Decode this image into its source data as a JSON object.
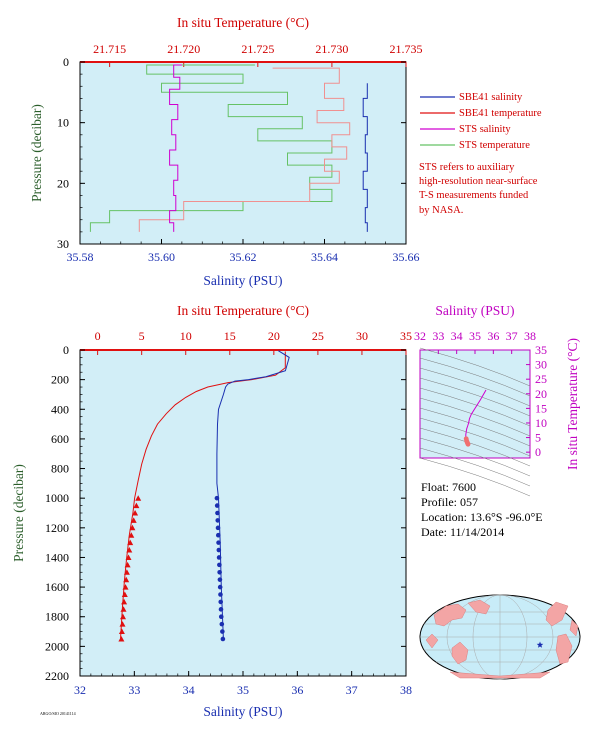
{
  "colors": {
    "panel_bg": "#d2eef7",
    "sbe41_salinity": "#1a2fb0",
    "sbe41_temperature": "#e01010",
    "sts_salinity": "#d000d0",
    "sts_temperature": "#66c266",
    "red_text": "#d00000",
    "blue_text": "#1a2fb0",
    "magenta_text": "#c000c0",
    "green_text": "#2c5f2c"
  },
  "chart_data": [
    {
      "type": "line",
      "top_axis_label": "In situ Temperature (°C)",
      "top_ticks": [
        "21.715",
        "21.720",
        "21.725",
        "21.730",
        "21.735"
      ],
      "top_lim": [
        21.713,
        21.735
      ],
      "xlabel": "Salinity (PSU)",
      "x_ticks": [
        "35.58",
        "35.60",
        "35.62",
        "35.64",
        "35.66"
      ],
      "xlim": [
        35.58,
        35.66
      ],
      "ylabel": "Pressure (decibar)",
      "y_ticks": [
        "0",
        "10",
        "20",
        "30"
      ],
      "ylim": [
        0,
        30
      ],
      "y_inverted": true,
      "legend_position": "right",
      "legend": [
        "SBE41 salinity",
        "SBE41 temperature",
        "STS salinity",
        "STS temperature"
      ],
      "series": [
        {
          "name": "SBE41 salinity",
          "x": [
            35.6505,
            35.6505,
            35.6495,
            35.6505,
            35.65,
            35.6505,
            35.6495,
            35.6505,
            35.65,
            35.6505
          ],
          "y": [
            3.5,
            6,
            9,
            12,
            15,
            18,
            21,
            24,
            26.5,
            28
          ]
        },
        {
          "name": "SBE41 temperature",
          "x": [
            21.726,
            21.7305,
            21.7295,
            21.7308,
            21.729,
            21.7312,
            21.73,
            21.731,
            21.7295,
            21.7305,
            21.7285,
            21.72,
            21.717
          ],
          "y": [
            1,
            3.5,
            6,
            8,
            10,
            12,
            14,
            16,
            18,
            20,
            23,
            26,
            28
          ]
        },
        {
          "name": "STS salinity",
          "x": [
            35.605,
            35.603,
            35.6045,
            35.602,
            35.604,
            35.6025,
            35.6035,
            35.602,
            35.604,
            35.603,
            35.6035,
            35.602,
            35.603
          ],
          "y": [
            0.5,
            2.5,
            4.5,
            7,
            9.5,
            12,
            14.5,
            17,
            19.5,
            22,
            24.5,
            26.5,
            28
          ]
        },
        {
          "name": "STS temperature",
          "x": [
            21.7248,
            21.7175,
            21.724,
            21.7185,
            21.727,
            21.723,
            21.728,
            21.725,
            21.73,
            21.727,
            21.73,
            21.7285,
            21.73,
            21.724,
            21.715,
            21.7137
          ],
          "y": [
            0.5,
            2,
            3.5,
            5,
            7,
            9,
            11,
            13,
            15,
            17,
            19,
            21,
            23,
            24.5,
            26.5,
            28
          ]
        }
      ]
    },
    {
      "type": "line",
      "top_axis_label": "In situ Temperature (°C)",
      "top_ticks": [
        "0",
        "5",
        "10",
        "15",
        "20",
        "25",
        "30",
        "35"
      ],
      "top_lim": [
        -2,
        35
      ],
      "xlabel": "Salinity (PSU)",
      "x_ticks": [
        "32",
        "33",
        "34",
        "35",
        "36",
        "37",
        "38"
      ],
      "xlim": [
        32,
        38
      ],
      "ylabel": "Pressure (decibar)",
      "y_ticks": [
        "0",
        "200",
        "400",
        "600",
        "800",
        "1000",
        "1200",
        "1400",
        "1600",
        "1800",
        "2000",
        "2200"
      ],
      "ylim": [
        0,
        2200
      ],
      "y_inverted": true,
      "series": [
        {
          "name": "Temperature",
          "x": [
            21.3,
            21.3,
            20.2,
            17.5,
            14.8,
            12.5,
            11.2,
            10.0,
            8.8,
            7.8,
            6.8,
            6.1,
            5.5,
            5.0,
            4.6,
            4.2,
            4.0,
            3.6,
            3.3,
            3.05,
            2.8,
            2.6
          ],
          "y": [
            10,
            120,
            170,
            200,
            220,
            250,
            280,
            320,
            370,
            430,
            500,
            580,
            670,
            770,
            880,
            1000,
            1100,
            1250,
            1400,
            1550,
            1750,
            1950
          ]
        },
        {
          "name": "Salinity",
          "x": [
            35.65,
            35.85,
            35.78,
            35.42,
            35.1,
            34.85,
            34.72,
            34.68,
            34.64,
            34.55,
            34.53,
            34.52,
            34.52,
            34.55,
            34.58,
            34.6,
            34.64
          ],
          "y": [
            5,
            50,
            140,
            180,
            200,
            210,
            230,
            250,
            300,
            400,
            500,
            700,
            900,
            1000,
            1300,
            1600,
            1950
          ]
        }
      ],
      "markers": {
        "temperature_x": [
          4.6,
          4.4,
          4.25,
          4.1,
          3.95,
          3.82,
          3.7,
          3.6,
          3.5,
          3.4,
          3.32,
          3.24,
          3.16,
          3.08,
          3.0,
          2.94,
          2.88,
          2.82,
          2.76,
          2.7
        ],
        "temperature_y": [
          1000,
          1050,
          1100,
          1150,
          1200,
          1250,
          1300,
          1350,
          1400,
          1450,
          1500,
          1550,
          1600,
          1650,
          1700,
          1750,
          1800,
          1850,
          1900,
          1950
        ],
        "salinity_x": [
          34.52,
          34.525,
          34.53,
          34.535,
          34.54,
          34.545,
          34.55,
          34.555,
          34.56,
          34.565,
          34.57,
          34.575,
          34.58,
          34.585,
          34.59,
          34.595,
          34.6,
          34.61,
          34.62,
          34.63
        ],
        "salinity_y": [
          1000,
          1050,
          1100,
          1150,
          1200,
          1250,
          1300,
          1350,
          1400,
          1450,
          1500,
          1550,
          1600,
          1650,
          1700,
          1750,
          1800,
          1850,
          1900,
          1950
        ]
      }
    },
    {
      "type": "scatter",
      "top_axis_label": "Salinity (PSU)",
      "x_ticks": [
        "32",
        "33",
        "34",
        "35",
        "36",
        "37",
        "38"
      ],
      "xlim": [
        32,
        38
      ],
      "right_axis_label": "In situ Temperature (°C)",
      "y_ticks": [
        "0",
        "5",
        "10",
        "15",
        "20",
        "25",
        "30",
        "35"
      ],
      "ylim": [
        -2,
        35
      ],
      "series": [
        {
          "name": "T-S",
          "x": [
            35.6,
            35.3,
            35.0,
            34.8,
            34.7,
            34.65,
            34.6,
            34.55,
            34.5,
            34.5,
            34.52,
            34.55,
            34.6
          ],
          "y": [
            21.3,
            18.0,
            15.0,
            13.0,
            11.5,
            10.0,
            9.0,
            8.0,
            6.0,
            5.0,
            4.0,
            3.0,
            2.6
          ]
        }
      ],
      "markers": {
        "x": [
          34.52,
          34.54,
          34.56,
          34.58,
          34.6,
          34.62
        ],
        "y": [
          4.6,
          4.0,
          3.6,
          3.3,
          3.0,
          2.7
        ]
      }
    }
  ],
  "note_lines": [
    "STS refers to auxiliary",
    "high-resolution near-surface",
    "T-S measurements funded",
    "by NASA."
  ],
  "float_info": {
    "float": "Float:  7600",
    "profile": "Profile:  057",
    "location": "Location:  13.6°S  -96.0°E",
    "date": "Date:  11/14/2014"
  },
  "credit": "ARGO/SIO  20141114",
  "map": {
    "marker": "star"
  }
}
